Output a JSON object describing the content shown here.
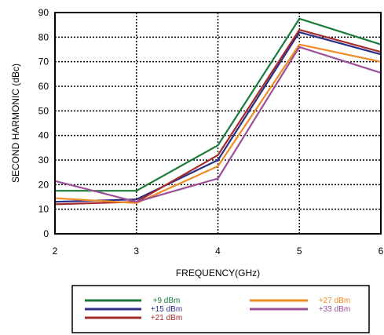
{
  "chart_data": {
    "type": "line",
    "xlabel": "FREQUENCY(GHz)",
    "ylabel": "SECOND HARMONIC (dBc)",
    "xlim": [
      2,
      6
    ],
    "ylim": [
      0,
      90
    ],
    "xticks": [
      2,
      3,
      4,
      5,
      6
    ],
    "yticks": [
      0,
      10,
      20,
      30,
      40,
      50,
      60,
      70,
      80,
      90
    ],
    "grid": true,
    "legend_position": "bottom",
    "x": [
      2,
      3,
      4,
      5,
      6
    ],
    "series": [
      {
        "name": "+9 dBm",
        "color": "#1a7a3a",
        "values": [
          17.5,
          17.5,
          36,
          87.5,
          77
        ]
      },
      {
        "name": "+15 dBm",
        "color": "#2b2f86",
        "values": [
          13,
          14,
          30,
          82,
          73
        ]
      },
      {
        "name": "+21 dBm",
        "color": "#a52a2a",
        "values": [
          12,
          13,
          32,
          83,
          74
        ]
      },
      {
        "name": "+27 dBm",
        "color": "#f08a24",
        "values": [
          14.5,
          12.5,
          27.5,
          77,
          70
        ]
      },
      {
        "name": "+33 dBm",
        "color": "#9b4f96",
        "values": [
          21.5,
          13,
          22.5,
          76,
          65.5
        ]
      }
    ]
  }
}
